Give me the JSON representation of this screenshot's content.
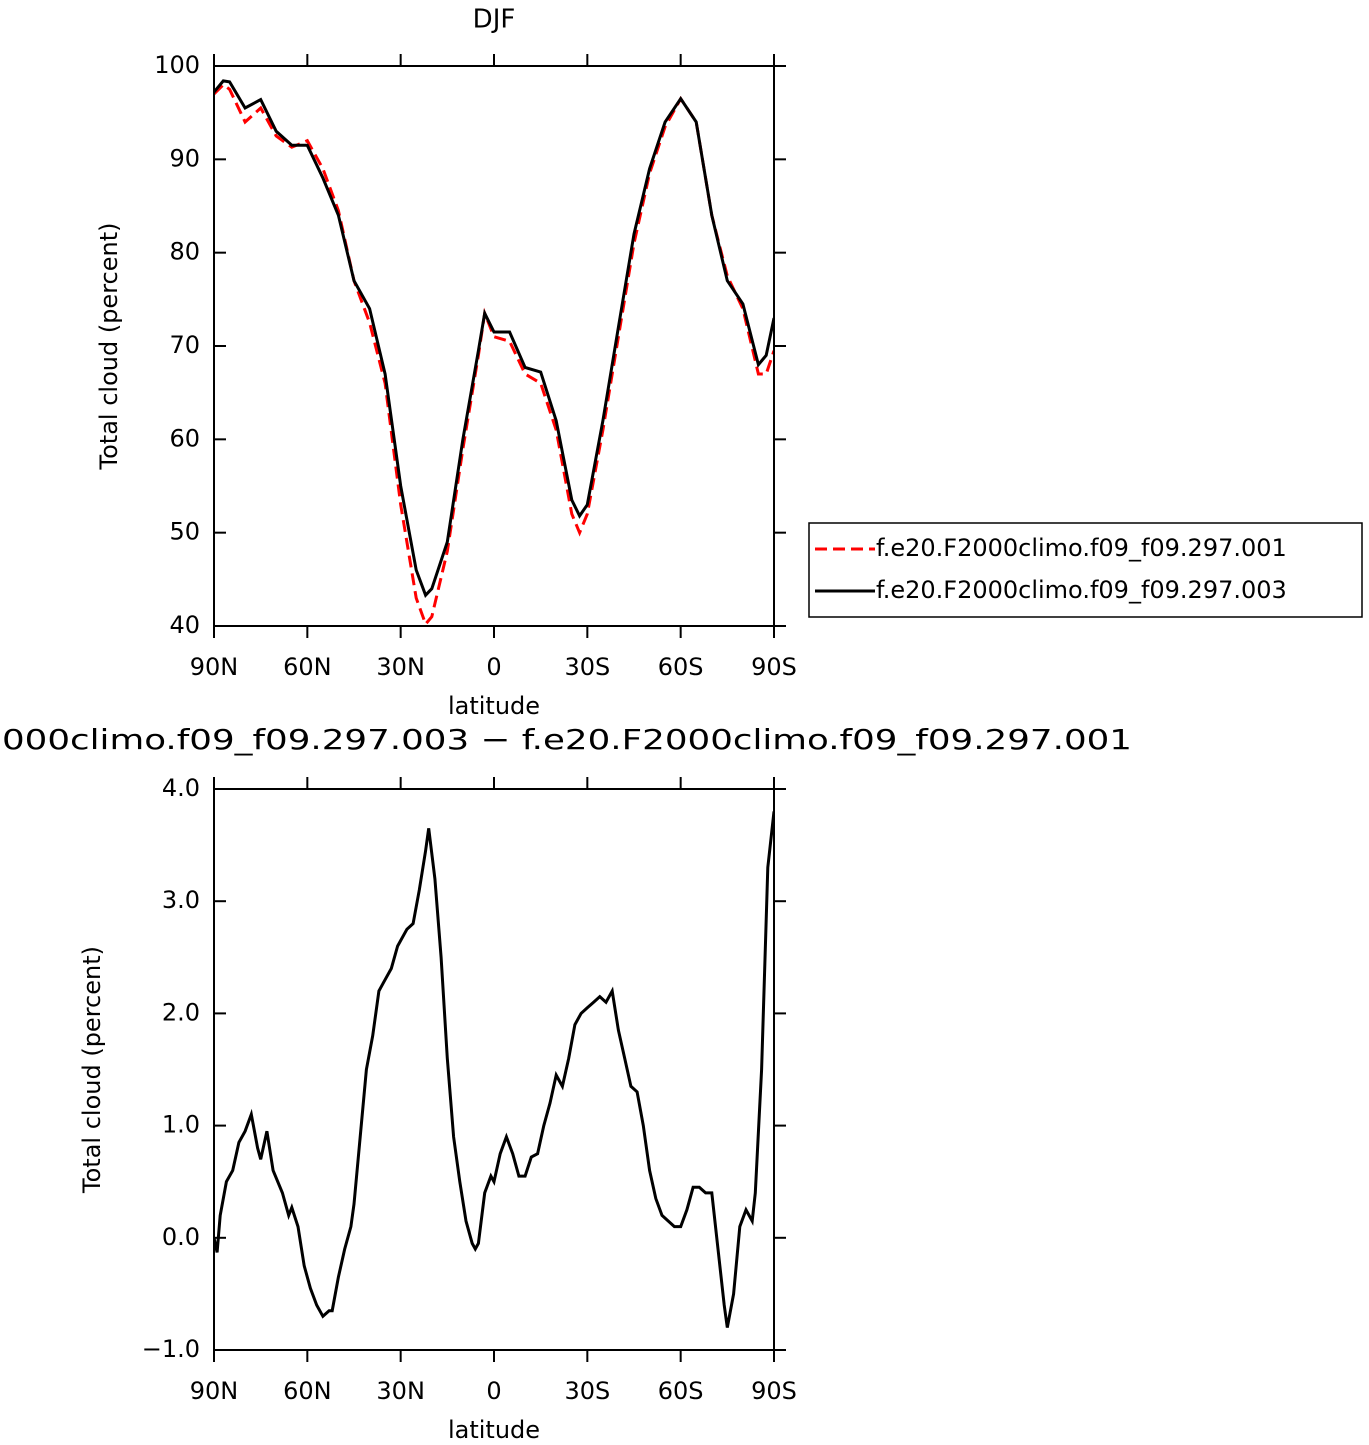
{
  "chart_data": [
    {
      "type": "line",
      "title": "DJF",
      "xlabel": "latitude",
      "ylabel": "Total cloud (percent)",
      "x": [
        90,
        87,
        85,
        80,
        75,
        70,
        65,
        60,
        55,
        50,
        45,
        40,
        35,
        30,
        25,
        22,
        20,
        15,
        10,
        5,
        3,
        0,
        -5,
        -10,
        -15,
        -20,
        -25,
        -27.5,
        -30,
        -35,
        -40,
        -45,
        -50,
        -55,
        -60,
        -65,
        -70,
        -75,
        -80,
        -85,
        -87.5,
        -90
      ],
      "series": [
        {
          "name": "f.e20.F2000climo.f09_f09.297.001",
          "color": "#ff0000",
          "linestyle": "dashed",
          "values": [
            97,
            98,
            97.5,
            94,
            95.5,
            92.5,
            91.3,
            92,
            89,
            84.5,
            77,
            72.5,
            66,
            53,
            43,
            40.2,
            41,
            48,
            59,
            69,
            73.5,
            71,
            70.5,
            67,
            66,
            61,
            52,
            50,
            52,
            61,
            71,
            81,
            88.5,
            93.5,
            96.5,
            94,
            84,
            77.5,
            74,
            67,
            67,
            69.5
          ]
        },
        {
          "name": "f.e20.F2000climo.f09_f09.297.003",
          "color": "#000000",
          "linestyle": "solid",
          "values": [
            97.2,
            98.4,
            98.3,
            95.5,
            96.4,
            93,
            91.5,
            91.5,
            88,
            84,
            77,
            74,
            67,
            55,
            46,
            43.3,
            44,
            49,
            60,
            69.5,
            73.5,
            71.5,
            71.5,
            67.7,
            67.2,
            62,
            53.5,
            51.8,
            53,
            62,
            72,
            82,
            89,
            94,
            96.5,
            94,
            84,
            77,
            74.5,
            68,
            69,
            73
          ]
        }
      ],
      "xlim": [
        90,
        -90
      ],
      "xticks": [
        {
          "value": 90,
          "label": "90N"
        },
        {
          "value": 60,
          "label": "60N"
        },
        {
          "value": 30,
          "label": "30N"
        },
        0,
        {
          "value": -30,
          "label": "30S"
        },
        {
          "value": -60,
          "label": "60S"
        },
        {
          "value": -90,
          "label": "90S"
        }
      ],
      "ylim": [
        40,
        100
      ],
      "yticks": [
        40,
        50,
        60,
        70,
        80,
        90,
        100
      ],
      "legend": "right"
    },
    {
      "type": "line",
      "title": "000climo.f09_f09.297.003 − f.e20.F2000climo.f09_f09.297.001",
      "xlabel": "latitude",
      "ylabel": "Total cloud (percent)",
      "x": [
        90,
        89,
        88,
        86,
        84,
        82,
        80,
        78,
        76,
        75,
        73,
        71,
        68,
        66,
        65,
        63,
        61,
        59,
        57,
        55,
        53,
        52,
        50,
        48,
        46,
        45,
        43,
        41,
        39,
        37,
        35,
        33,
        31,
        30,
        28,
        26,
        24,
        22,
        21,
        19,
        17,
        15,
        13,
        11,
        9,
        7,
        6,
        5,
        3,
        1,
        0,
        -2,
        -4,
        -6,
        -8,
        -10,
        -12,
        -14,
        -16,
        -18,
        -20,
        -22,
        -24,
        -26,
        -28,
        -30,
        -32,
        -34,
        -36,
        -38,
        -40,
        -42,
        -44,
        -46,
        -48,
        -50,
        -52,
        -54,
        -56,
        -58,
        -60,
        -62,
        -64,
        -66,
        -68,
        -70,
        -72,
        -74,
        -75,
        -77,
        -79,
        -81,
        -83,
        -84,
        -86,
        -88,
        -90
      ],
      "values": [
        0.0,
        -0.13,
        0.2,
        0.5,
        0.6,
        0.85,
        0.95,
        1.1,
        0.8,
        0.7,
        0.95,
        0.6,
        0.4,
        0.2,
        0.27,
        0.1,
        -0.25,
        -0.45,
        -0.6,
        -0.7,
        -0.65,
        -0.65,
        -0.35,
        -0.1,
        0.1,
        0.3,
        0.9,
        1.5,
        1.8,
        2.2,
        2.3,
        2.4,
        2.6,
        2.65,
        2.75,
        2.8,
        3.1,
        3.45,
        3.65,
        3.2,
        2.5,
        1.6,
        0.9,
        0.5,
        0.15,
        -0.05,
        -0.1,
        -0.05,
        0.4,
        0.55,
        0.5,
        0.75,
        0.9,
        0.75,
        0.55,
        0.55,
        0.72,
        0.75,
        1.0,
        1.2,
        1.45,
        1.35,
        1.6,
        1.9,
        2.0,
        2.05,
        2.1,
        2.15,
        2.1,
        2.2,
        1.85,
        1.6,
        1.35,
        1.3,
        1.0,
        0.6,
        0.35,
        0.2,
        0.15,
        0.1,
        0.1,
        0.25,
        0.45,
        0.45,
        0.4,
        0.4,
        -0.1,
        -0.6,
        -0.8,
        -0.5,
        0.1,
        0.25,
        0.15,
        0.4,
        1.5,
        3.3,
        3.8
      ],
      "color": "#000000",
      "xlim": [
        90,
        -90
      ],
      "xticks": [
        {
          "value": 90,
          "label": "90N"
        },
        {
          "value": 60,
          "label": "60N"
        },
        {
          "value": 30,
          "label": "30N"
        },
        0,
        {
          "value": -30,
          "label": "30S"
        },
        {
          "value": -60,
          "label": "60S"
        },
        {
          "value": -90,
          "label": "90S"
        }
      ],
      "ylim": [
        -1,
        4
      ],
      "yticks": [
        {
          "value": -1,
          "label": "−1.0"
        },
        {
          "value": 0,
          "label": "0.0"
        },
        {
          "value": 1,
          "label": "1.0"
        },
        {
          "value": 2,
          "label": "2.0"
        },
        {
          "value": 3,
          "label": "3.0"
        },
        {
          "value": 4,
          "label": "4.0"
        }
      ]
    }
  ]
}
